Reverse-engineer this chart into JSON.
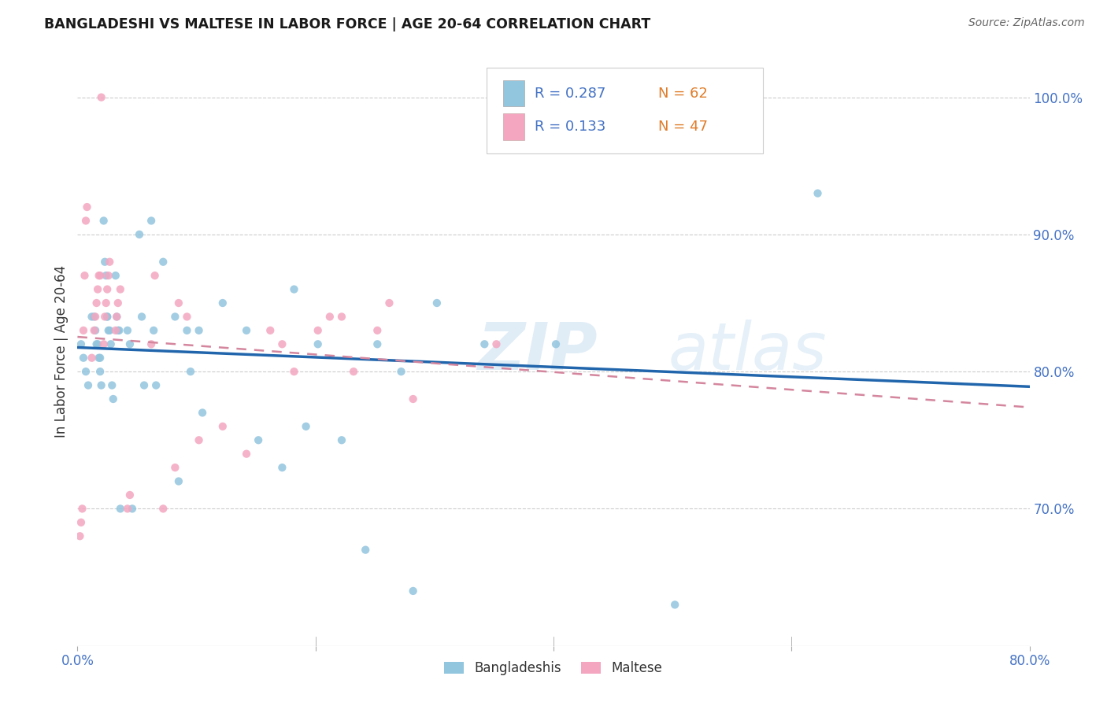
{
  "title": "BANGLADESHI VS MALTESE IN LABOR FORCE | AGE 20-64 CORRELATION CHART",
  "source": "Source: ZipAtlas.com",
  "ylabel": "In Labor Force | Age 20-64",
  "watermark": "ZIPatlas",
  "xlim": [
    0.0,
    0.8
  ],
  "ylim": [
    0.6,
    1.03
  ],
  "xtick_positions": [
    0.0,
    0.2,
    0.4,
    0.6,
    0.8
  ],
  "xtick_labels": [
    "0.0%",
    "",
    "",
    "",
    "80.0%"
  ],
  "ytick_positions_right": [
    1.0,
    0.9,
    0.8,
    0.7
  ],
  "ytick_labels_right": [
    "100.0%",
    "90.0%",
    "80.0%",
    "70.0%"
  ],
  "blue_color": "#92c5de",
  "pink_color": "#f4a6c0",
  "blue_line_color": "#2166ac",
  "pink_line_color": "#d4869e",
  "legend_r_blue": "R = 0.287",
  "legend_n_blue": "N = 62",
  "legend_r_pink": "R = 0.133",
  "legend_n_pink": "N = 47",
  "title_color": "#1a1a1a",
  "axis_label_color": "#4472c4",
  "grid_color": "#cccccc",
  "background_color": "#ffffff",
  "bangladeshi_x": [
    0.003,
    0.005,
    0.007,
    0.009,
    0.012,
    0.014,
    0.015,
    0.016,
    0.017,
    0.018,
    0.019,
    0.019,
    0.02,
    0.022,
    0.023,
    0.024,
    0.025,
    0.025,
    0.026,
    0.027,
    0.028,
    0.029,
    0.03,
    0.032,
    0.033,
    0.034,
    0.035,
    0.036,
    0.042,
    0.044,
    0.046,
    0.052,
    0.054,
    0.056,
    0.062,
    0.064,
    0.066,
    0.072,
    0.082,
    0.085,
    0.092,
    0.095,
    0.102,
    0.105,
    0.122,
    0.142,
    0.152,
    0.172,
    0.182,
    0.192,
    0.202,
    0.222,
    0.242,
    0.252,
    0.272,
    0.282,
    0.302,
    0.342,
    0.402,
    0.412,
    0.502,
    0.622
  ],
  "bangladeshi_y": [
    0.82,
    0.81,
    0.8,
    0.79,
    0.84,
    0.84,
    0.83,
    0.82,
    0.82,
    0.81,
    0.81,
    0.8,
    0.79,
    0.91,
    0.88,
    0.87,
    0.84,
    0.84,
    0.83,
    0.83,
    0.82,
    0.79,
    0.78,
    0.87,
    0.84,
    0.83,
    0.83,
    0.7,
    0.83,
    0.82,
    0.7,
    0.9,
    0.84,
    0.79,
    0.91,
    0.83,
    0.79,
    0.88,
    0.84,
    0.72,
    0.83,
    0.8,
    0.83,
    0.77,
    0.85,
    0.83,
    0.75,
    0.73,
    0.86,
    0.76,
    0.82,
    0.75,
    0.67,
    0.82,
    0.8,
    0.64,
    0.85,
    0.82,
    0.82,
    1.0,
    0.63,
    0.93
  ],
  "maltese_x": [
    0.002,
    0.003,
    0.004,
    0.005,
    0.006,
    0.007,
    0.008,
    0.012,
    0.014,
    0.015,
    0.016,
    0.017,
    0.018,
    0.019,
    0.02,
    0.022,
    0.023,
    0.024,
    0.025,
    0.026,
    0.027,
    0.032,
    0.033,
    0.034,
    0.036,
    0.042,
    0.044,
    0.062,
    0.065,
    0.072,
    0.082,
    0.085,
    0.092,
    0.102,
    0.122,
    0.142,
    0.162,
    0.172,
    0.182,
    0.202,
    0.212,
    0.222,
    0.232,
    0.252,
    0.262,
    0.282,
    0.352
  ],
  "maltese_y": [
    0.68,
    0.69,
    0.7,
    0.83,
    0.87,
    0.91,
    0.92,
    0.81,
    0.83,
    0.84,
    0.85,
    0.86,
    0.87,
    0.87,
    1.0,
    0.82,
    0.84,
    0.85,
    0.86,
    0.87,
    0.88,
    0.83,
    0.84,
    0.85,
    0.86,
    0.7,
    0.71,
    0.82,
    0.87,
    0.7,
    0.73,
    0.85,
    0.84,
    0.75,
    0.76,
    0.74,
    0.83,
    0.82,
    0.8,
    0.83,
    0.84,
    0.84,
    0.8,
    0.83,
    0.85,
    0.78,
    0.82
  ]
}
